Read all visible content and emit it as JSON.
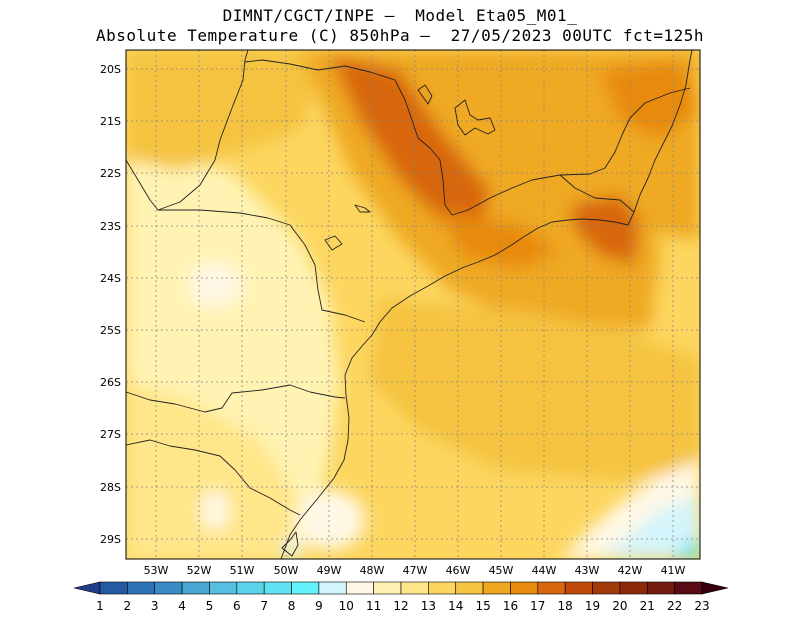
{
  "header": {
    "line1": "DIMNT/CGCT/INPE –  Model Eta05_M01_",
    "line2": "Absolute Temperature (C) 850hPa –  27/05/2023 00UTC fct=125h"
  },
  "map": {
    "lon_range": [
      -53.75,
      -40.4
    ],
    "lat_range": [
      -29.4,
      -19.8
    ],
    "lat_ticks": [
      "20S",
      "21S",
      "22S",
      "23S",
      "24S",
      "25S",
      "26S",
      "27S",
      "28S",
      "29S"
    ],
    "lon_ticks": [
      "53W",
      "52W",
      "51W",
      "50W",
      "49W",
      "48W",
      "47W",
      "46W",
      "45W",
      "44W",
      "43W",
      "42W",
      "41W"
    ],
    "grid": "dotted"
  },
  "colorbar": {
    "labels": [
      "1",
      "2",
      "3",
      "4",
      "5",
      "6",
      "7",
      "8",
      "9",
      "10",
      "11",
      "12",
      "13",
      "14",
      "15",
      "16",
      "17",
      "18",
      "19",
      "20",
      "21",
      "22",
      "23"
    ],
    "colors": [
      "#1f3d8a",
      "#245aa0",
      "#2d74b4",
      "#3a8cc4",
      "#4aa6d2",
      "#56bfe0",
      "#5cd3ea",
      "#5ee2f1",
      "#62f2fb",
      "#d4f4fb",
      "#fff8e6",
      "#fff3b3",
      "#ffe68a",
      "#fcd65f",
      "#f5c340",
      "#efa920",
      "#e88a0e",
      "#d8660c",
      "#c04a0b",
      "#a33a0a",
      "#8a2a0a",
      "#731a0c",
      "#5a0a14",
      "#3a0010"
    ]
  }
}
